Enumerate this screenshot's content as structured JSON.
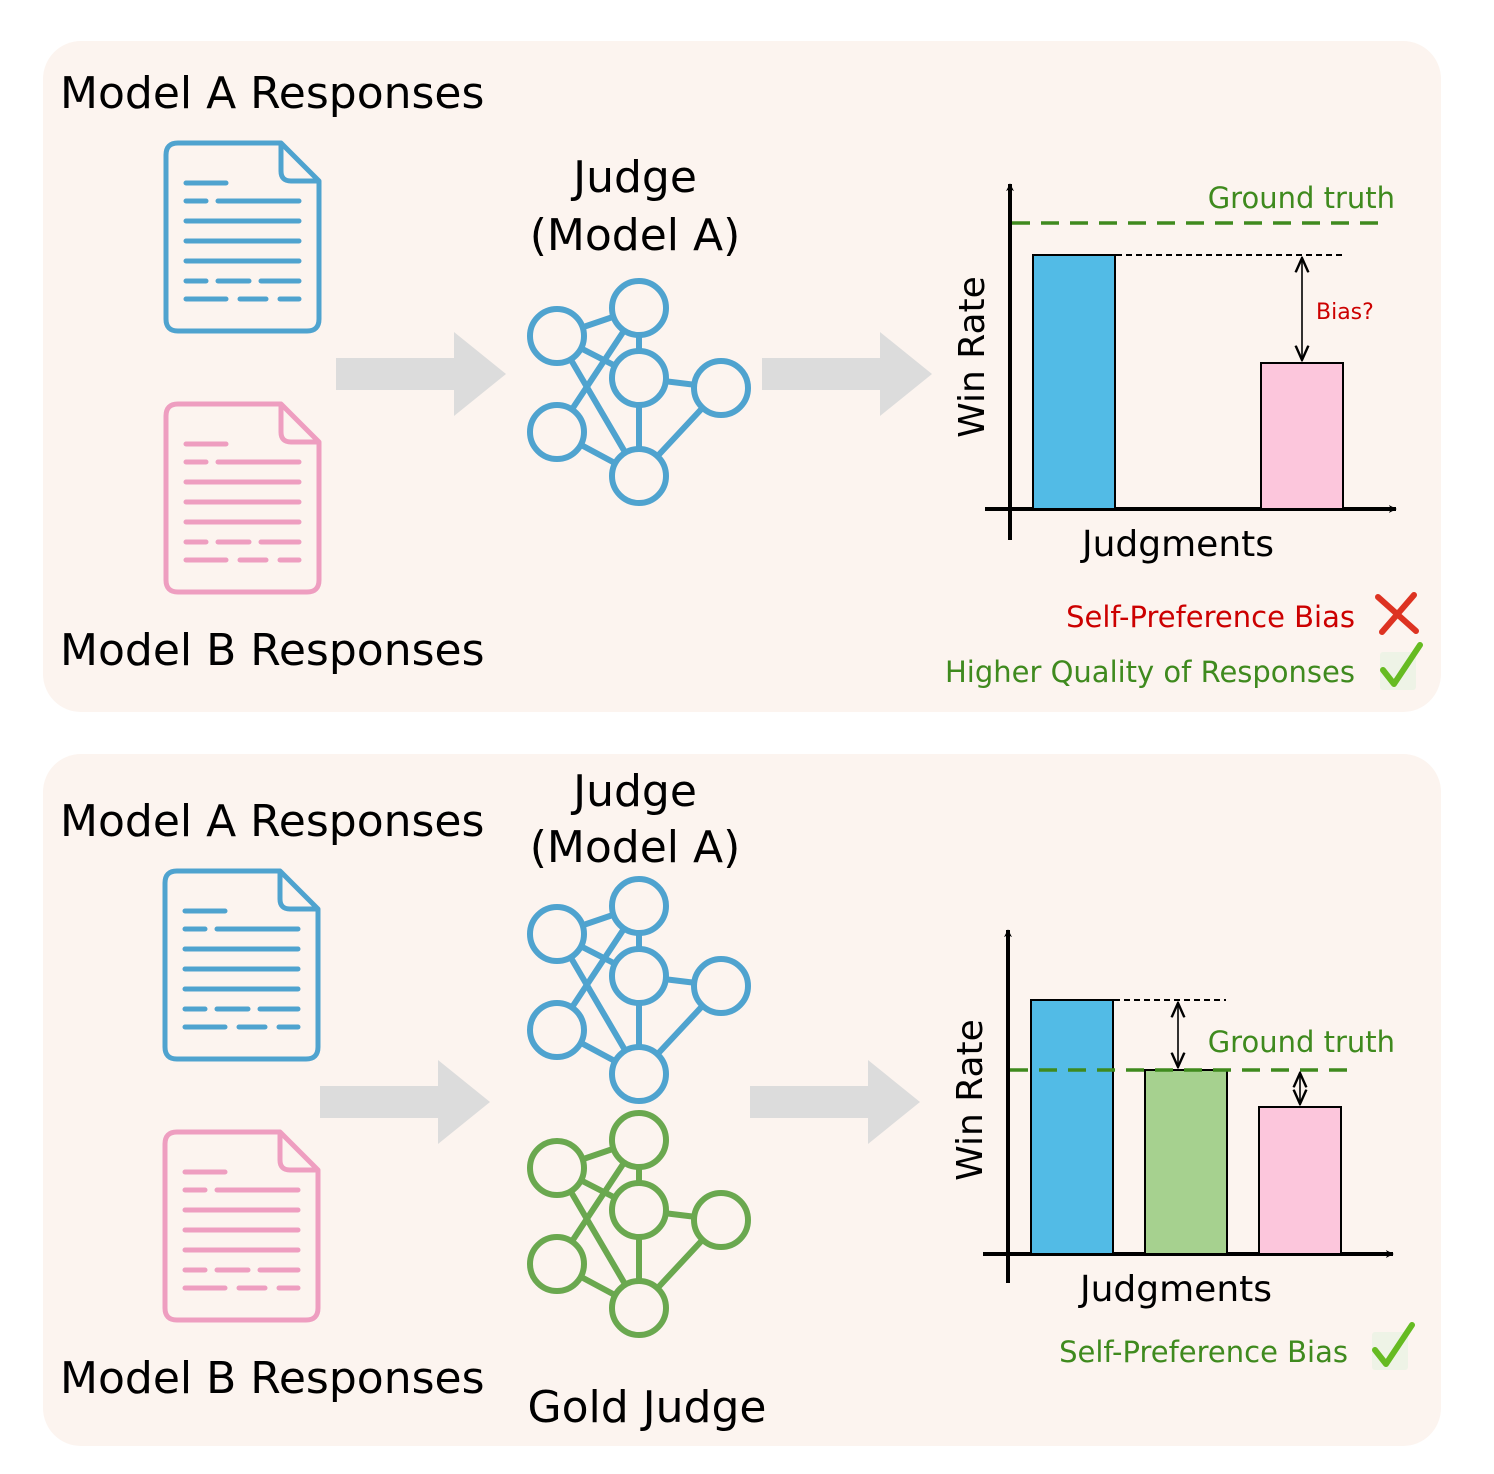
{
  "colors": {
    "panel_bg": "#fcf4ef",
    "model_a": "#4fa3cf",
    "model_b": "#ee9ec0",
    "gold": "#6aa84f",
    "bar_a": "#52bbe6",
    "bar_b": "#fcc6dc",
    "bar_gold": "#a6d18f",
    "arrow": "#dcdcdc",
    "green_text": "#3f8a1e",
    "red_text": "#cc0000",
    "cross": "#dd3322",
    "check": "#66bb22"
  },
  "panel_top": {
    "model_a_label": "Model A Responses",
    "model_b_label": "Model B Responses",
    "judge_line1": "Judge",
    "judge_line2": "(Model A)",
    "judge_icon": "neural-network-icon",
    "chart": {
      "ylabel": "Win Rate",
      "xlabel": "Judgments",
      "ground_truth_label": "Ground truth",
      "bias_label": "Bias?"
    },
    "self_pref_label": "Self-Preference Bias",
    "self_pref_icon": "cross-icon",
    "quality_label": "Higher Quality of Responses",
    "quality_icon": "check-icon"
  },
  "panel_bottom": {
    "model_a_label": "Model A Responses",
    "model_b_label": "Model B Responses",
    "judge_line1": "Judge",
    "judge_line2": "(Model A)",
    "gold_label": "Gold Judge",
    "chart": {
      "ylabel": "Win Rate",
      "xlabel": "Judgments",
      "ground_truth_label": "Ground truth"
    },
    "self_pref_label": "Self-Preference Bias",
    "self_pref_icon": "check-icon"
  }
}
